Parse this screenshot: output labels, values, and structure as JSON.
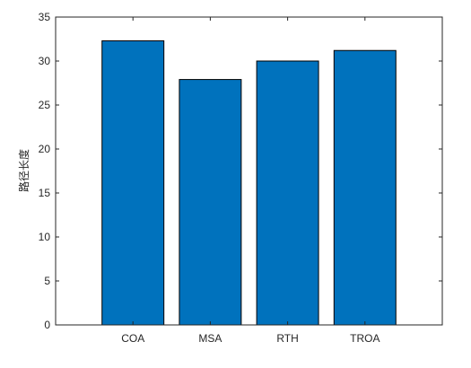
{
  "chart_data": {
    "type": "bar",
    "title": "",
    "xlabel": "",
    "ylabel": "路径长度",
    "categories": [
      "COA",
      "MSA",
      "RTH",
      "TROA"
    ],
    "values": [
      32.3,
      27.9,
      30.0,
      31.2
    ],
    "ylim": [
      0,
      35
    ],
    "yticks": [
      0,
      5,
      10,
      15,
      20,
      25,
      30,
      35
    ],
    "grid": false,
    "legend": "none",
    "bar_color": "#0072BD",
    "bar_edge_color": "#000000",
    "axis_color": "#262626"
  }
}
